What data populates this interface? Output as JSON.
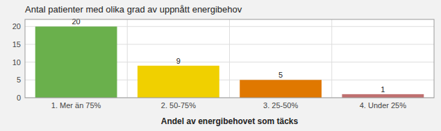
{
  "chart_data": {
    "type": "bar",
    "title": "Antal patienter med olika grad av uppnått energibehov",
    "xlabel": "Andel av energibehovet som täcks",
    "categories": [
      "1. Mer än 75%",
      "2. 50-75%",
      "3. 25-50%",
      "4. Under 25%"
    ],
    "values": [
      20,
      9,
      5,
      1
    ],
    "colors": [
      "#6ab04c",
      "#f0d000",
      "#e07800",
      "#c07070"
    ],
    "ylim": [
      0,
      22
    ],
    "yticks": [
      0,
      5,
      10,
      15,
      20
    ],
    "grid": true,
    "data_labels": true
  }
}
